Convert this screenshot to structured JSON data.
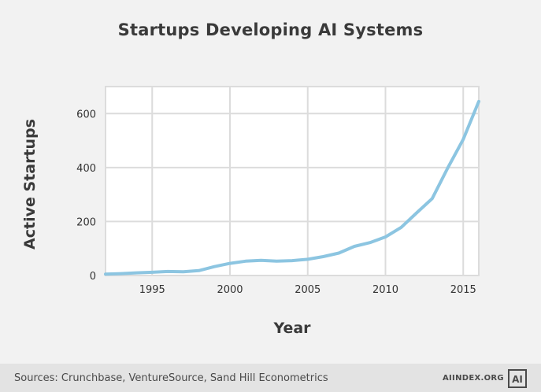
{
  "footer": {
    "source": "Sources: Crunchbase, VentureSource, Sand Hill Econometrics",
    "brand": "AIINDEX.ORG",
    "logo_text": "AI"
  },
  "colors": {
    "background": "#f2f2f2",
    "footer_background": "#e3e3e3",
    "line": "#8cc5e1",
    "grid": "#dcdcdc"
  },
  "chart_data": {
    "type": "line",
    "title": "Startups Developing AI Systems",
    "xlabel": "Year",
    "ylabel": "Active Startups",
    "xlim": [
      1992,
      2016
    ],
    "ylim": [
      0,
      700
    ],
    "xticks": [
      1995,
      2000,
      2005,
      2010,
      2015
    ],
    "yticks": [
      0,
      200,
      400,
      600
    ],
    "grid": true,
    "legend": "none",
    "series": [
      {
        "x": [
          1992,
          1993,
          1994,
          1995,
          1996,
          1997,
          1998,
          1999,
          2000,
          2001,
          2002,
          2003,
          2004,
          2005,
          2006,
          2007,
          2008,
          2009,
          2010,
          2011,
          2012,
          2013,
          2014,
          2015,
          2016
        ],
        "values": [
          5,
          7,
          10,
          12,
          15,
          14,
          18,
          33,
          45,
          53,
          56,
          53,
          55,
          60,
          70,
          83,
          108,
          122,
          143,
          178,
          232,
          285,
          398,
          505,
          645
        ]
      }
    ]
  }
}
